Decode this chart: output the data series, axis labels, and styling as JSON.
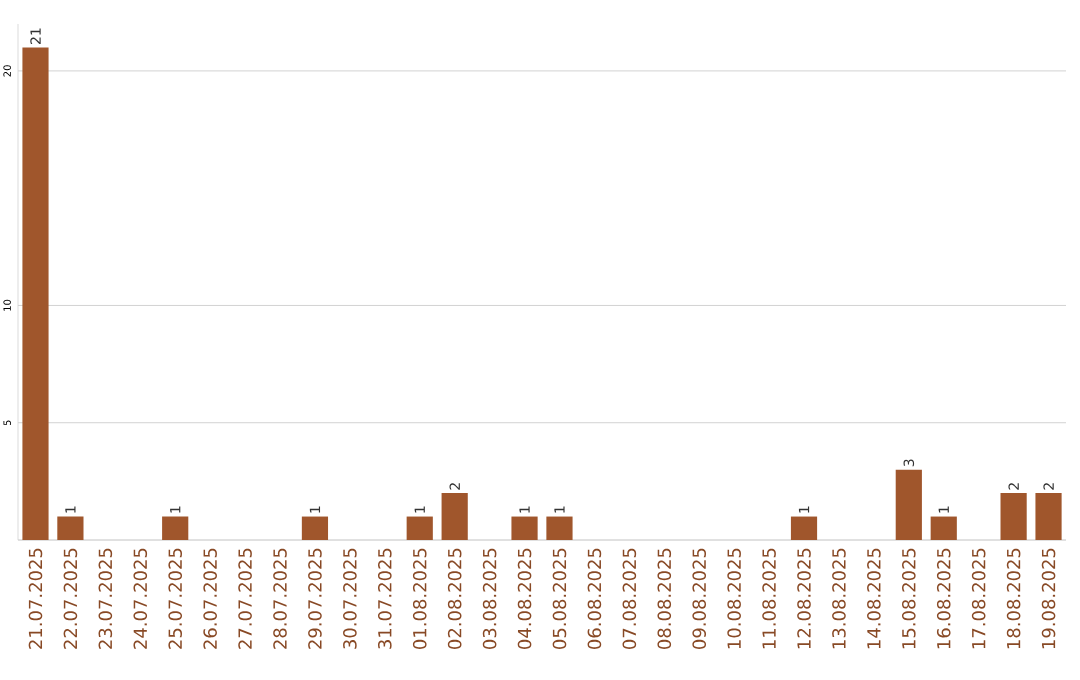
{
  "chart_data": {
    "type": "bar",
    "categories": [
      "21.07.2025",
      "22.07.2025",
      "23.07.2025",
      "24.07.2025",
      "25.07.2025",
      "26.07.2025",
      "27.07.2025",
      "28.07.2025",
      "29.07.2025",
      "30.07.2025",
      "31.07.2025",
      "01.08.2025",
      "02.08.2025",
      "03.08.2025",
      "04.08.2025",
      "05.08.2025",
      "06.08.2025",
      "07.08.2025",
      "08.08.2025",
      "09.08.2025",
      "10.08.2025",
      "11.08.2025",
      "12.08.2025",
      "13.08.2025",
      "14.08.2025",
      "15.08.2025",
      "16.08.2025",
      "17.08.2025",
      "18.08.2025",
      "19.08.2025"
    ],
    "values": [
      21,
      1,
      0,
      0,
      1,
      0,
      0,
      0,
      1,
      0,
      0,
      1,
      2,
      0,
      1,
      1,
      0,
      0,
      0,
      0,
      0,
      0,
      1,
      0,
      0,
      3,
      1,
      0,
      2,
      2
    ],
    "value_labels": [
      "21",
      "1",
      null,
      null,
      "1",
      null,
      null,
      null,
      "1",
      null,
      null,
      "1",
      "2",
      null,
      "1",
      "1",
      null,
      null,
      null,
      null,
      null,
      null,
      "1",
      null,
      null,
      "3",
      "1",
      null,
      "2",
      "2"
    ],
    "color": "#a0562c",
    "ylim": [
      0,
      22
    ],
    "yticks": [
      5,
      10,
      20
    ],
    "grid": "y"
  }
}
